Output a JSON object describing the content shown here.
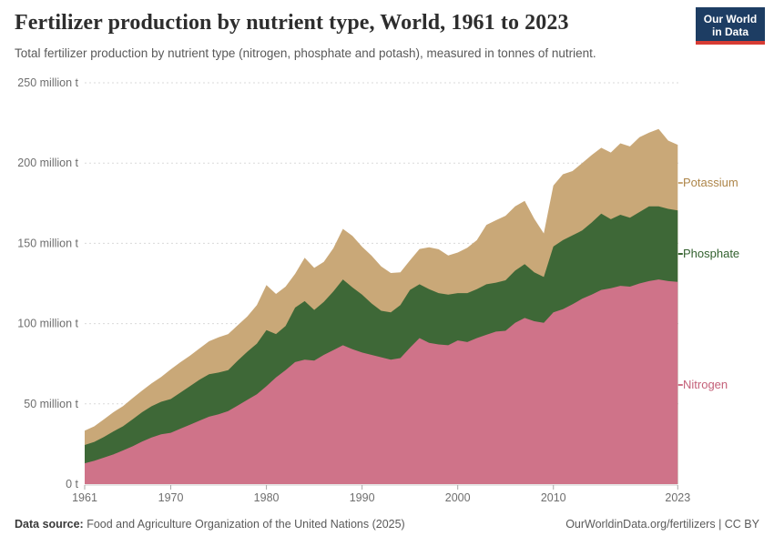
{
  "header": {
    "title": "Fertilizer production by nutrient type, World, 1961 to 2023",
    "subtitle": "Total fertilizer production by nutrient type (nitrogen, phosphate and potash), measured in tonnes of nutrient.",
    "logo": {
      "line1": "Our World",
      "line2": "in Data",
      "bg_color": "#1d3d63",
      "accent_color": "#d73c34"
    }
  },
  "footer": {
    "source_label": "Data source:",
    "source_text": " Food and Agriculture Organization of the United Nations (2025)",
    "link_text": "OurWorldinData.org/fertilizers | CC BY"
  },
  "chart_data": {
    "type": "area",
    "stacked": true,
    "title": "Fertilizer production by nutrient type, World, 1961 to 2023",
    "xlabel": "",
    "ylabel": "tonnes of nutrient",
    "ylim": [
      0,
      250
    ],
    "grid": "dashed horizontal",
    "legend_position": "right",
    "x": [
      1961,
      1962,
      1963,
      1964,
      1965,
      1966,
      1967,
      1968,
      1969,
      1970,
      1971,
      1972,
      1973,
      1974,
      1975,
      1976,
      1977,
      1978,
      1979,
      1980,
      1981,
      1982,
      1983,
      1984,
      1985,
      1986,
      1987,
      1988,
      1989,
      1990,
      1991,
      1992,
      1993,
      1994,
      1995,
      1996,
      1997,
      1998,
      1999,
      2000,
      2001,
      2002,
      2003,
      2004,
      2005,
      2006,
      2007,
      2008,
      2009,
      2010,
      2011,
      2012,
      2013,
      2014,
      2015,
      2016,
      2017,
      2018,
      2019,
      2020,
      2021,
      2022,
      2023
    ],
    "x_ticks": [
      1961,
      1970,
      1980,
      1990,
      2000,
      2010,
      2023
    ],
    "y_ticks": [
      {
        "value": 0,
        "label": "0 t"
      },
      {
        "value": 50,
        "label": "50 million t"
      },
      {
        "value": 100,
        "label": "100 million t"
      },
      {
        "value": 150,
        "label": "150 million t"
      },
      {
        "value": 200,
        "label": "200 million t"
      },
      {
        "value": 250,
        "label": "250 million t"
      }
    ],
    "unit": "million tonnes",
    "series": [
      {
        "name": "Nitrogen",
        "color": "#cf7389",
        "label_color": "#c46179",
        "values": [
          13,
          14.5,
          16.5,
          18.5,
          21,
          23.5,
          26.5,
          29,
          31,
          32,
          34.5,
          37,
          39.5,
          42,
          43.5,
          45.5,
          49,
          52.5,
          56,
          61,
          66.5,
          71,
          76,
          77.5,
          77,
          80.5,
          83.5,
          86.5,
          84,
          82,
          80.5,
          79,
          77.5,
          78.5,
          85,
          91,
          88,
          87,
          86.5,
          89.5,
          88.5,
          91,
          93,
          95,
          95.5,
          100.5,
          103.5,
          101.5,
          100.5,
          107,
          109,
          112,
          115.5,
          118,
          121,
          122,
          123.5,
          123,
          125,
          126.5,
          127.5,
          126.5,
          126
        ]
      },
      {
        "name": "Phosphate",
        "color": "#3e6837",
        "label_color": "#33612f",
        "values": [
          11.4,
          11.8,
          12.8,
          14.3,
          15,
          16.8,
          18.3,
          19.5,
          20.3,
          21,
          22.5,
          24,
          25.5,
          26.5,
          26,
          25.5,
          28,
          30,
          31.5,
          35,
          27,
          27.5,
          34,
          36.5,
          31.5,
          33,
          36.5,
          41,
          38.5,
          36,
          32,
          29,
          29.5,
          33,
          36,
          33.5,
          33.5,
          32,
          31.5,
          29.5,
          30.5,
          30.5,
          31.5,
          30.5,
          31.5,
          32.5,
          33.5,
          30.5,
          28.5,
          41,
          43,
          43,
          42.5,
          45,
          47.5,
          43,
          44.3,
          43,
          44.5,
          46.5,
          45.5,
          45,
          44.5
        ]
      },
      {
        "name": "Potassium",
        "color": "#c9a878",
        "label_color": "#ad8549",
        "values": [
          8.9,
          9.7,
          11,
          12,
          12.5,
          13.2,
          13.5,
          14.3,
          15.5,
          18.5,
          18.9,
          19,
          19.5,
          20.5,
          22,
          22.5,
          22,
          22,
          24,
          28,
          25,
          24.5,
          21,
          27,
          26.2,
          25,
          27,
          31.5,
          32.1,
          29.9,
          29.8,
          27.6,
          24.5,
          20.4,
          18.4,
          22,
          26,
          27.3,
          24.4,
          25.3,
          28.2,
          30.5,
          37,
          38.9,
          40.2,
          40,
          39.4,
          33.3,
          27.2,
          38,
          41,
          40,
          42,
          42,
          41,
          41.6,
          44.5,
          44.4,
          46.6,
          46,
          48.2,
          42.5,
          40.9
        ]
      }
    ]
  }
}
